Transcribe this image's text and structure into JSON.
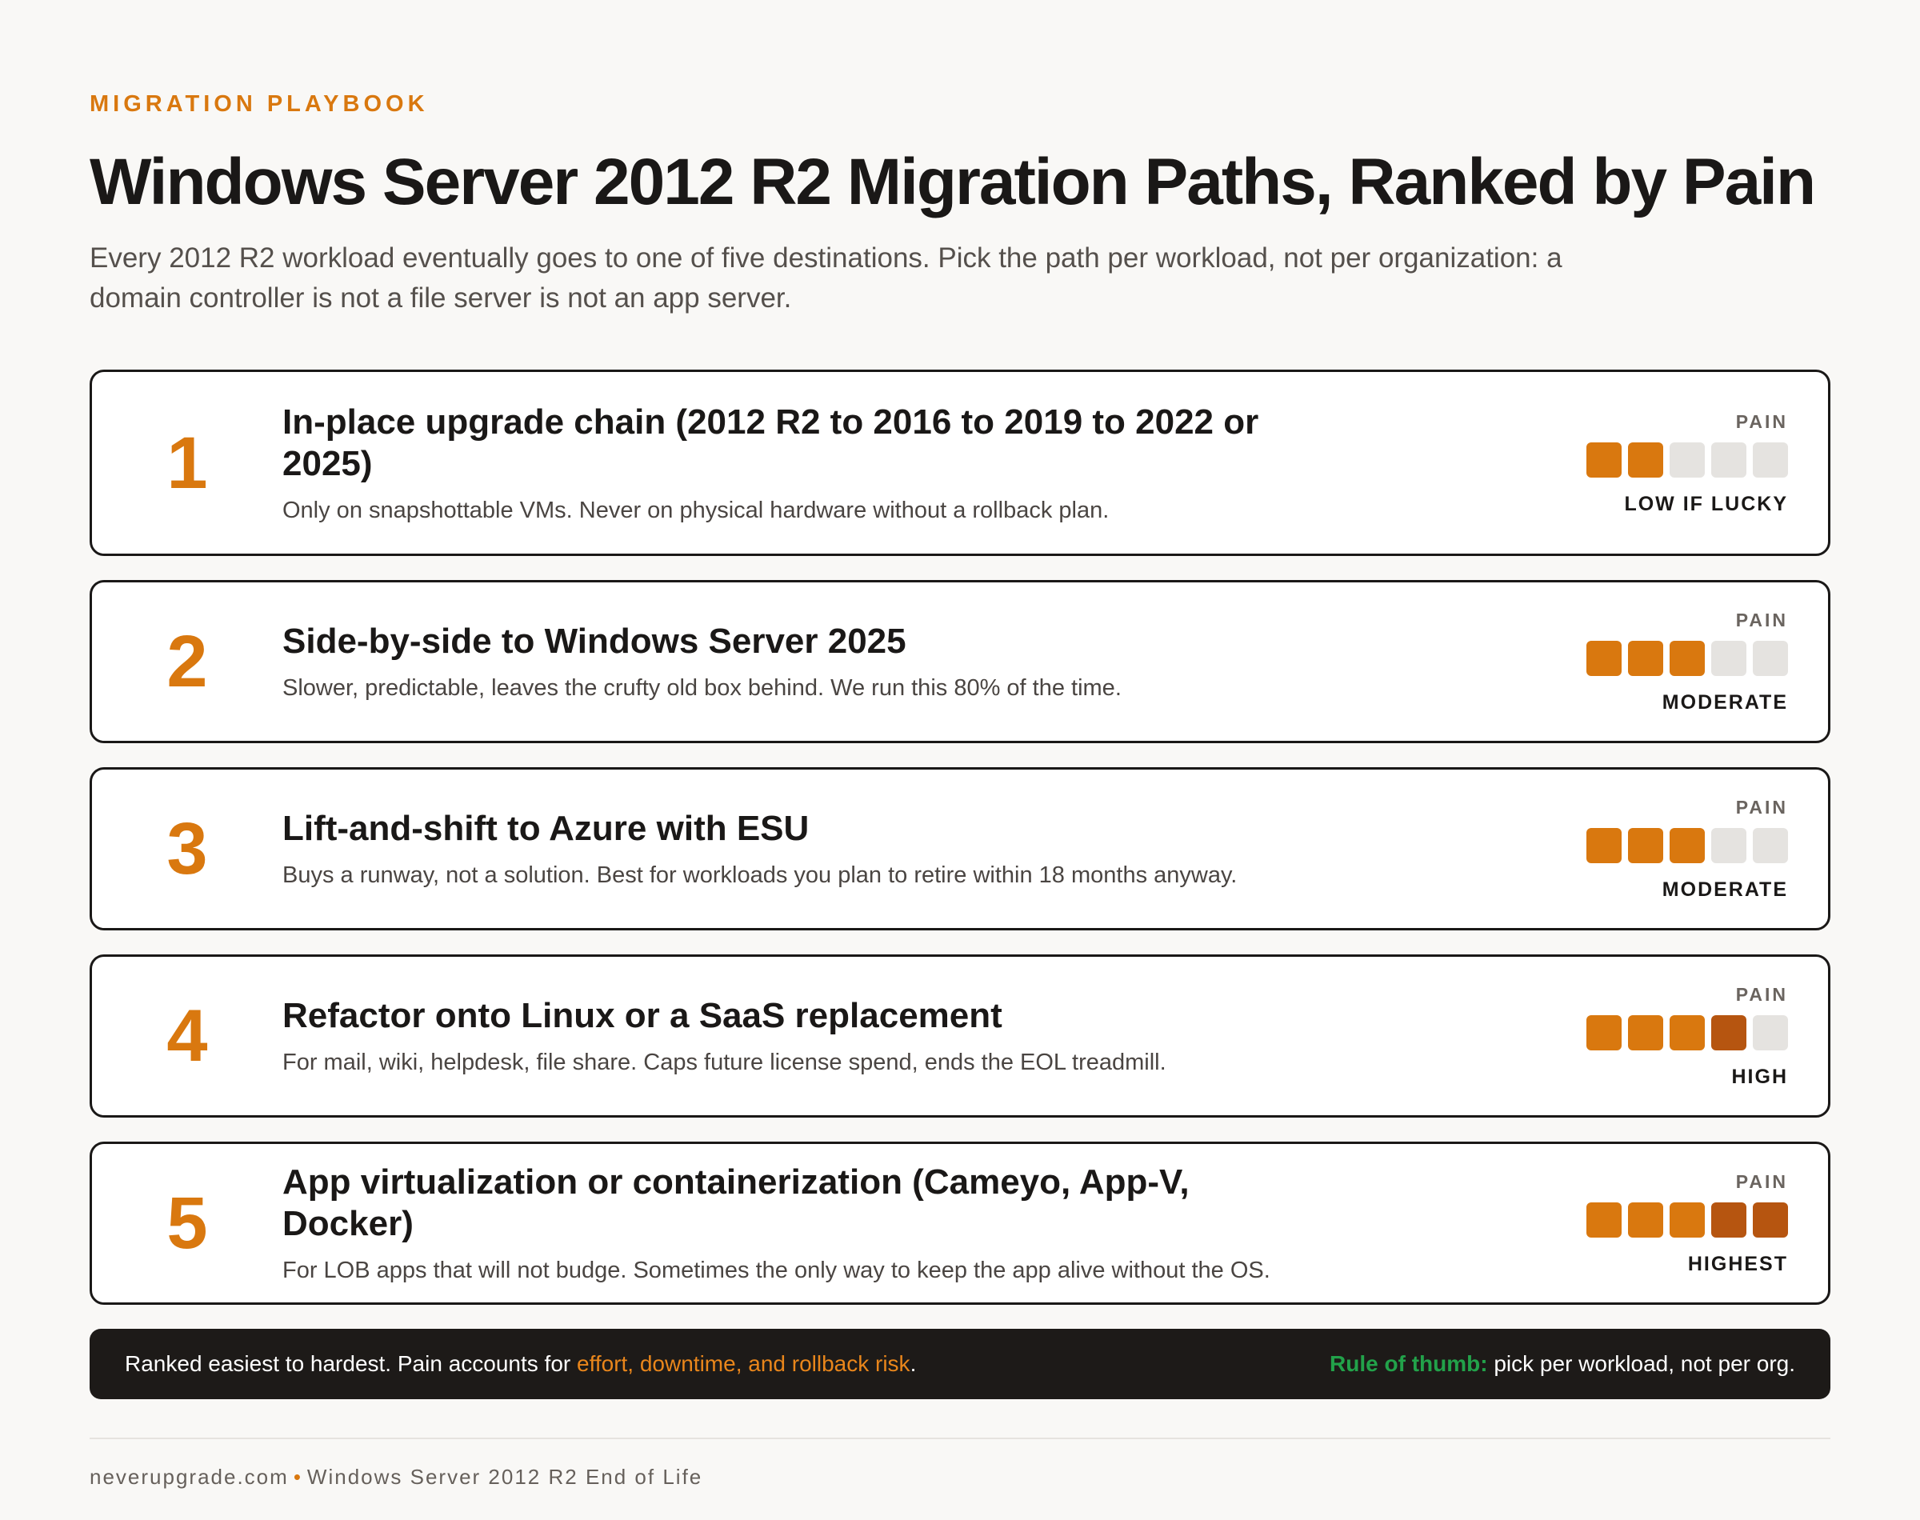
{
  "header": {
    "eyebrow": "MIGRATION PLAYBOOK",
    "title": "Windows Server 2012 R2 Migration Paths, Ranked by Pain",
    "subtitle": "Every 2012 R2 workload eventually goes to one of five destinations. Pick the path per workload, not per organization: a domain controller is not a file server is not an app server."
  },
  "pain_label": "PAIN",
  "paths": [
    {
      "rank": "1",
      "title": "In-place upgrade chain (2012 R2 to 2016 to 2019 to 2022 or 2025)",
      "description": "Only on snapshottable VMs. Never on physical hardware without a rollback plan.",
      "pain_score": 2,
      "pain_hot": 0,
      "pain_level": "LOW IF LUCKY"
    },
    {
      "rank": "2",
      "title": "Side-by-side to Windows Server 2025",
      "description": "Slower, predictable, leaves the crufty old box behind. We run this 80% of the time.",
      "pain_score": 3,
      "pain_hot": 0,
      "pain_level": "MODERATE"
    },
    {
      "rank": "3",
      "title": "Lift-and-shift to Azure with ESU",
      "description": "Buys a runway, not a solution. Best for workloads you plan to retire within 18 months anyway.",
      "pain_score": 3,
      "pain_hot": 0,
      "pain_level": "MODERATE"
    },
    {
      "rank": "4",
      "title": "Refactor onto Linux or a SaaS replacement",
      "description": "For mail, wiki, helpdesk, file share. Caps future license spend, ends the EOL treadmill.",
      "pain_score": 4,
      "pain_hot": 1,
      "pain_level": "HIGH"
    },
    {
      "rank": "5",
      "title": "App virtualization or containerization (Cameyo, App-V, Docker)",
      "description": "For LOB apps that will not budge. Sometimes the only way to keep the app alive without the OS.",
      "pain_score": 5,
      "pain_hot": 2,
      "pain_level": "HIGHEST"
    }
  ],
  "pain_max": 5,
  "colors": {
    "accent": "#d9780f",
    "hot": "#b65510",
    "empty": "#e5e3e0",
    "rule": "#22a24a"
  },
  "footer": {
    "note_prefix": "Ranked easiest to hardest. Pain accounts for ",
    "note_highlight": "effort, downtime, and rollback risk",
    "note_suffix": ".",
    "rule_label": "Rule of thumb:",
    "rule_text": " pick per workload, not per org."
  },
  "credit": {
    "site": "neverupgrade.com",
    "separator": "•",
    "page": "Windows Server 2012 R2 End of Life"
  }
}
